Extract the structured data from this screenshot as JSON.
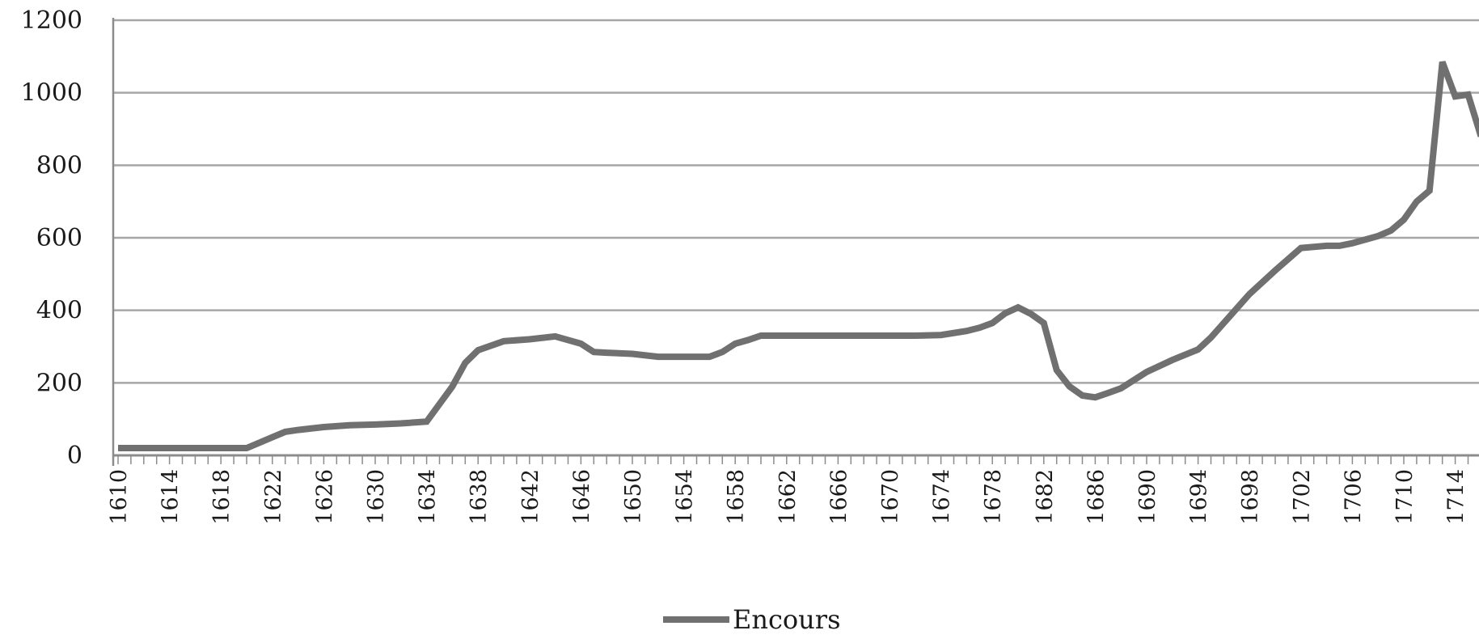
{
  "chart_data": {
    "type": "line",
    "title": "",
    "xlabel": "",
    "ylabel": "",
    "ylim": [
      0,
      1200
    ],
    "yticks": [
      0,
      200,
      400,
      600,
      800,
      1000,
      1200
    ],
    "xlim": [
      1610,
      1716
    ],
    "xtick_labels": [
      "1610",
      "1614",
      "1618",
      "1622",
      "1626",
      "1630",
      "1634",
      "1638",
      "1642",
      "1646",
      "1650",
      "1654",
      "1658",
      "1662",
      "1666",
      "1670",
      "1674",
      "1678",
      "1682",
      "1686",
      "1690",
      "1694",
      "1698",
      "1702",
      "1706",
      "1710",
      "1714"
    ],
    "grid": "horizontal",
    "legend_position": "bottom",
    "series": [
      {
        "name": "Encours",
        "color": "#707070",
        "x": [
          1610,
          1612,
          1614,
          1616,
          1618,
          1620,
          1621,
          1622,
          1623,
          1624,
          1626,
          1628,
          1630,
          1632,
          1634,
          1636,
          1637,
          1638,
          1640,
          1642,
          1644,
          1646,
          1647,
          1648,
          1650,
          1652,
          1654,
          1656,
          1657,
          1658,
          1659,
          1660,
          1662,
          1664,
          1666,
          1668,
          1670,
          1672,
          1674,
          1676,
          1677,
          1678,
          1679,
          1680,
          1681,
          1682,
          1683,
          1684,
          1685,
          1686,
          1687,
          1688,
          1690,
          1692,
          1694,
          1695,
          1696,
          1698,
          1700,
          1702,
          1704,
          1705,
          1706,
          1708,
          1709,
          1710,
          1711,
          1712,
          1713,
          1714,
          1715,
          1716
        ],
        "values": [
          20,
          20,
          20,
          20,
          20,
          20,
          35,
          50,
          65,
          70,
          78,
          83,
          85,
          88,
          93,
          190,
          255,
          290,
          315,
          320,
          328,
          308,
          285,
          283,
          280,
          272,
          272,
          272,
          285,
          308,
          318,
          330,
          330,
          330,
          330,
          330,
          330,
          330,
          332,
          343,
          352,
          365,
          392,
          408,
          390,
          365,
          235,
          190,
          165,
          160,
          172,
          185,
          230,
          263,
          292,
          325,
          365,
          445,
          510,
          572,
          578,
          578,
          585,
          605,
          620,
          650,
          700,
          730,
          1085,
          990,
          995,
          880
        ]
      }
    ]
  }
}
